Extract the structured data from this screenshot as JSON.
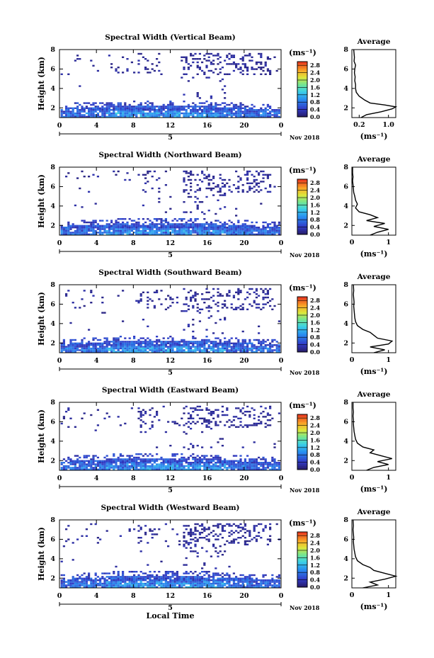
{
  "chart_data": [
    {
      "type": "heatmap",
      "title": "Spectral Width (Vertical Beam)",
      "ylabel": "Height (km)",
      "x_ticks": [
        "0",
        "4",
        "8",
        "12",
        "16",
        "20",
        "0"
      ],
      "y_ticks": [
        "2",
        "4",
        "6",
        "8"
      ],
      "date_label": "5",
      "month_label": "Nov 2018",
      "xlim": [
        0,
        24
      ],
      "ylim": [
        1,
        8
      ],
      "colorbar": {
        "unit": "(ms⁻¹)",
        "labels": [
          "0.0",
          "0.4",
          "0.8",
          "1.2",
          "1.6",
          "2.0",
          "2.4",
          "2.8"
        ],
        "range": [
          0,
          3
        ]
      },
      "average": {
        "title": "Average",
        "ylim": [
          1,
          8
        ],
        "y_ticks": [
          "2",
          "4",
          "6",
          "8"
        ],
        "x_ticks": [
          "0.2",
          "1.0"
        ],
        "xlim": [
          0,
          1.2
        ],
        "xlabel": "(ms⁻¹)",
        "profile": [
          [
            1.0,
            0.25
          ],
          [
            1.3,
            0.4
          ],
          [
            1.6,
            0.8
          ],
          [
            1.9,
            1.1
          ],
          [
            2.1,
            1.2
          ],
          [
            2.3,
            0.9
          ],
          [
            2.5,
            0.5
          ],
          [
            2.8,
            0.35
          ],
          [
            3.2,
            0.2
          ],
          [
            3.6,
            0.12
          ],
          [
            4.0,
            0.1
          ],
          [
            4.4,
            0.1
          ],
          [
            4.8,
            0.08
          ],
          [
            5.2,
            0.09
          ],
          [
            5.6,
            0.07
          ],
          [
            6.0,
            0.08
          ],
          [
            6.4,
            0.1
          ],
          [
            6.8,
            0.06
          ],
          [
            7.2,
            0.07
          ],
          [
            7.6,
            0.06
          ],
          [
            8.0,
            0.05
          ]
        ]
      }
    },
    {
      "type": "heatmap",
      "title": "Spectral Width (Northward Beam)",
      "ylabel": "Height (km)",
      "x_ticks": [
        "0",
        "4",
        "8",
        "12",
        "16",
        "20",
        "0"
      ],
      "y_ticks": [
        "2",
        "4",
        "6",
        "8"
      ],
      "date_label": "5",
      "month_label": "Nov 2018",
      "xlim": [
        0,
        24
      ],
      "ylim": [
        1,
        8
      ],
      "colorbar": {
        "unit": "(ms⁻¹)",
        "labels": [
          "0.0",
          "0.4",
          "0.8",
          "1.2",
          "1.6",
          "2.0",
          "2.4",
          "2.8"
        ],
        "range": [
          0,
          3
        ]
      },
      "average": {
        "title": "Average",
        "ylim": [
          1,
          8
        ],
        "y_ticks": [
          "2",
          "4",
          "6",
          "8"
        ],
        "x_ticks": [
          "0",
          "1"
        ],
        "xlim": [
          0,
          1.2
        ],
        "xlabel": "(ms⁻¹)",
        "profile": [
          [
            1.0,
            0.5
          ],
          [
            1.3,
            0.7
          ],
          [
            1.6,
            1.0
          ],
          [
            1.9,
            0.6
          ],
          [
            2.2,
            0.9
          ],
          [
            2.5,
            0.4
          ],
          [
            2.8,
            0.7
          ],
          [
            3.1,
            0.5
          ],
          [
            3.4,
            0.2
          ],
          [
            3.8,
            0.1
          ],
          [
            4.2,
            0.15
          ],
          [
            4.6,
            0.1
          ],
          [
            5.0,
            0.08
          ],
          [
            5.4,
            0.05
          ],
          [
            5.8,
            0.04
          ],
          [
            6.2,
            0.03
          ],
          [
            6.6,
            0.02
          ],
          [
            7.0,
            0.03
          ],
          [
            7.4,
            0.02
          ],
          [
            8.0,
            0.02
          ]
        ]
      }
    },
    {
      "type": "heatmap",
      "title": "Spectral Width (Southward Beam)",
      "ylabel": "Height (km)",
      "x_ticks": [
        "0",
        "4",
        "8",
        "12",
        "16",
        "20",
        "0"
      ],
      "y_ticks": [
        "2",
        "4",
        "6",
        "8"
      ],
      "date_label": "5",
      "month_label": "Nov 2018",
      "xlim": [
        0,
        24
      ],
      "ylim": [
        1,
        8
      ],
      "colorbar": {
        "unit": "(ms⁻¹)",
        "labels": [
          "0.0",
          "0.4",
          "0.8",
          "1.2",
          "1.6",
          "2.0",
          "2.4",
          "2.8"
        ],
        "range": [
          0,
          3
        ]
      },
      "average": {
        "title": "Average",
        "ylim": [
          1,
          8
        ],
        "y_ticks": [
          "2",
          "4",
          "6",
          "8"
        ],
        "x_ticks": [
          "0",
          "1"
        ],
        "xlim": [
          0,
          1.2
        ],
        "xlabel": "(ms⁻¹)",
        "profile": [
          [
            1.0,
            0.6
          ],
          [
            1.3,
            0.9
          ],
          [
            1.6,
            0.5
          ],
          [
            1.9,
            1.0
          ],
          [
            2.2,
            1.1
          ],
          [
            2.5,
            0.7
          ],
          [
            2.8,
            0.6
          ],
          [
            3.1,
            0.5
          ],
          [
            3.4,
            0.3
          ],
          [
            3.8,
            0.15
          ],
          [
            4.2,
            0.1
          ],
          [
            4.6,
            0.08
          ],
          [
            5.0,
            0.07
          ],
          [
            5.4,
            0.06
          ],
          [
            5.8,
            0.05
          ],
          [
            6.2,
            0.06
          ],
          [
            6.6,
            0.05
          ],
          [
            7.0,
            0.04
          ],
          [
            7.4,
            0.05
          ],
          [
            8.0,
            0.04
          ]
        ]
      }
    },
    {
      "type": "heatmap",
      "title": "Spectral Width (Eastward Beam)",
      "ylabel": "Height (km)",
      "x_ticks": [
        "0",
        "4",
        "8",
        "12",
        "16",
        "20",
        "0"
      ],
      "y_ticks": [
        "2",
        "4",
        "6",
        "8"
      ],
      "date_label": "5",
      "month_label": "Nov 2018",
      "xlim": [
        0,
        24
      ],
      "ylim": [
        1,
        8
      ],
      "colorbar": {
        "unit": "(ms⁻¹)",
        "labels": [
          "0.0",
          "0.4",
          "0.8",
          "1.2",
          "1.6",
          "2.0",
          "2.4",
          "2.8"
        ],
        "range": [
          0,
          3
        ]
      },
      "average": {
        "title": "Average",
        "ylim": [
          1,
          8
        ],
        "y_ticks": [
          "2",
          "4",
          "6",
          "8"
        ],
        "x_ticks": [
          "0",
          "1"
        ],
        "xlim": [
          0,
          1.2
        ],
        "xlabel": "(ms⁻¹)",
        "profile": [
          [
            1.0,
            0.4
          ],
          [
            1.3,
            0.6
          ],
          [
            1.6,
            1.0
          ],
          [
            1.9,
            0.7
          ],
          [
            2.2,
            1.1
          ],
          [
            2.5,
            0.8
          ],
          [
            2.8,
            0.5
          ],
          [
            3.1,
            0.6
          ],
          [
            3.4,
            0.3
          ],
          [
            3.8,
            0.15
          ],
          [
            4.2,
            0.1
          ],
          [
            4.6,
            0.08
          ],
          [
            5.0,
            0.06
          ],
          [
            5.4,
            0.05
          ],
          [
            5.8,
            0.04
          ],
          [
            6.2,
            0.04
          ],
          [
            6.6,
            0.03
          ],
          [
            7.0,
            0.04
          ],
          [
            7.4,
            0.03
          ],
          [
            8.0,
            0.03
          ]
        ]
      }
    },
    {
      "type": "heatmap",
      "title": "Spectral Width (Westward Beam)",
      "ylabel": "Height (km)",
      "xlabel": "Local Time",
      "x_ticks": [
        "0",
        "4",
        "8",
        "12",
        "16",
        "20",
        "0"
      ],
      "y_ticks": [
        "2",
        "4",
        "6",
        "8"
      ],
      "date_label": "5",
      "month_label": "Nov 2018",
      "xlim": [
        0,
        24
      ],
      "ylim": [
        1,
        8
      ],
      "colorbar": {
        "unit": "(ms⁻¹)",
        "labels": [
          "0.0",
          "0.4",
          "0.8",
          "1.2",
          "1.6",
          "2.0",
          "2.4",
          "2.8"
        ],
        "range": [
          0,
          3
        ]
      },
      "average": {
        "title": "Average",
        "ylim": [
          1,
          8
        ],
        "y_ticks": [
          "2",
          "4",
          "6",
          "8"
        ],
        "x_ticks": [
          "0",
          "1"
        ],
        "xlim": [
          0,
          1.2
        ],
        "xlabel": "(ms⁻¹)",
        "profile": [
          [
            1.0,
            0.3
          ],
          [
            1.3,
            0.7
          ],
          [
            1.6,
            0.5
          ],
          [
            1.9,
            0.9
          ],
          [
            2.2,
            1.2
          ],
          [
            2.5,
            0.9
          ],
          [
            2.8,
            0.6
          ],
          [
            3.1,
            0.5
          ],
          [
            3.4,
            0.3
          ],
          [
            3.8,
            0.15
          ],
          [
            4.2,
            0.1
          ],
          [
            4.6,
            0.08
          ],
          [
            5.0,
            0.06
          ],
          [
            5.4,
            0.05
          ],
          [
            5.8,
            0.04
          ],
          [
            6.2,
            0.05
          ],
          [
            6.6,
            0.04
          ],
          [
            7.0,
            0.03
          ],
          [
            7.4,
            0.04
          ],
          [
            8.0,
            0.03
          ]
        ]
      }
    }
  ]
}
